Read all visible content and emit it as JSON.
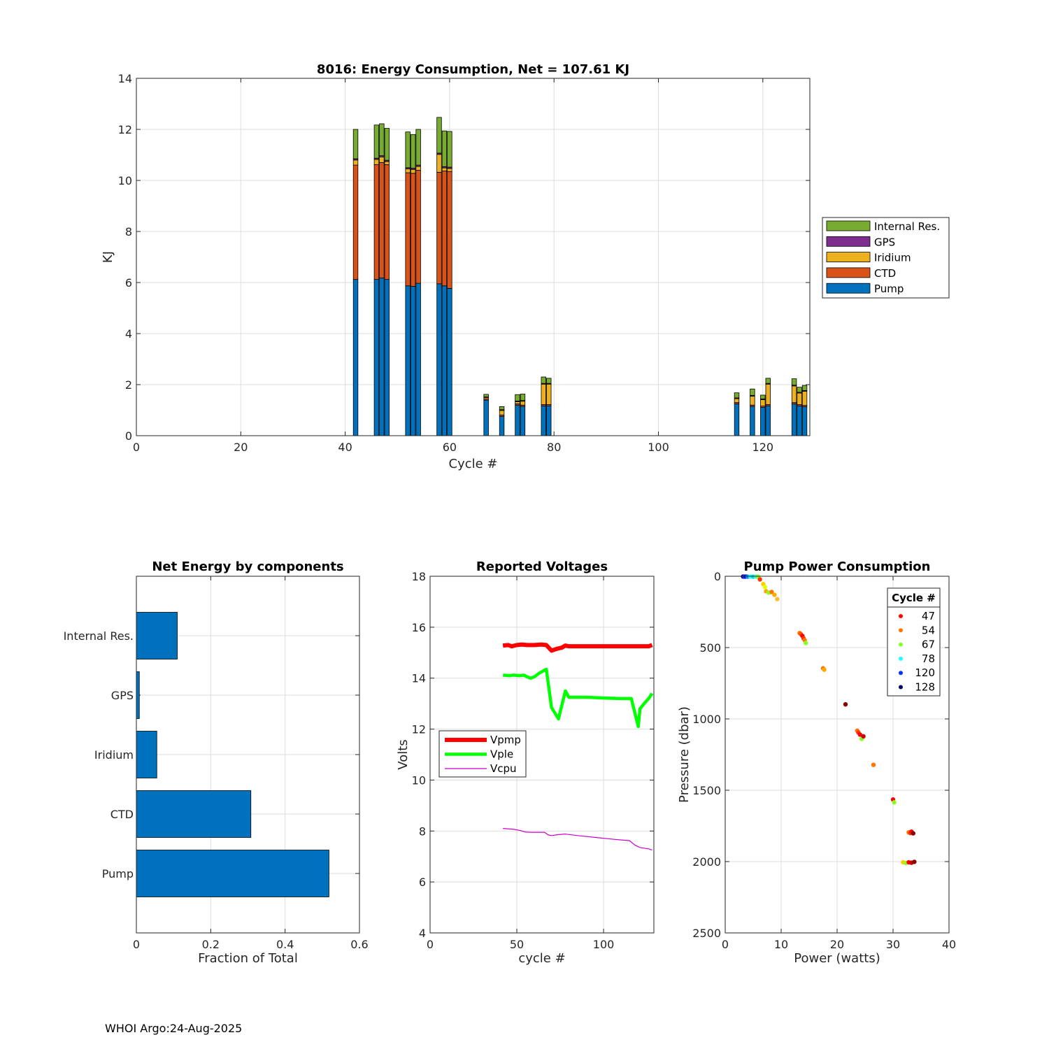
{
  "footer": "WHOI Argo:24-Aug-2025",
  "colors": {
    "pump": "#0072BD",
    "ctd": "#D95319",
    "iridium": "#EDB120",
    "gps": "#7E2F8E",
    "internal": "#77AC30",
    "vpmp": "#ff0000",
    "vple": "#00ff00",
    "vcpu": "#cc00cc"
  },
  "chart_data": [
    {
      "type": "bar",
      "stacked": true,
      "title": "8016: Energy Consumption,  Net = 107.61 KJ",
      "xlabel": "Cycle #",
      "ylabel": "KJ",
      "xlim": [
        0,
        129
      ],
      "ylim": [
        0,
        14
      ],
      "xticks": [
        "0",
        "20",
        "40",
        "60",
        "80",
        "100",
        "120"
      ],
      "yticks": [
        "0",
        "2",
        "4",
        "6",
        "8",
        "10",
        "12",
        "14"
      ],
      "legend_order": [
        "Internal Res.",
        "GPS",
        "Iridium",
        "CTD",
        "Pump"
      ],
      "legend_position": "outside-right",
      "cycles": [
        42,
        46,
        47,
        48,
        52,
        53,
        54,
        58,
        59,
        60,
        67,
        70,
        73,
        74,
        78,
        79,
        115,
        118,
        120,
        121,
        126,
        127,
        128
      ],
      "series": [
        {
          "name": "Pump",
          "color": "pump",
          "values": [
            6.12,
            6.12,
            6.18,
            6.12,
            5.87,
            5.85,
            5.97,
            5.95,
            5.87,
            5.77,
            1.39,
            0.76,
            1.2,
            1.15,
            1.17,
            1.17,
            1.25,
            1.15,
            1.11,
            1.17,
            1.25,
            1.17,
            1.14
          ]
        },
        {
          "name": "CTD",
          "color": "ctd",
          "values": [
            4.48,
            4.5,
            4.52,
            4.5,
            4.43,
            4.43,
            4.43,
            4.37,
            4.5,
            4.58,
            0.05,
            0.05,
            0.05,
            0.05,
            0.05,
            0.05,
            0.05,
            0.05,
            0.05,
            0.05,
            0.05,
            0.05,
            0.05
          ]
        },
        {
          "name": "Iridium",
          "color": "iridium",
          "values": [
            0.2,
            0.2,
            0.22,
            0.12,
            0.15,
            0.15,
            0.15,
            0.7,
            0.12,
            0.12,
            0.05,
            0.18,
            0.08,
            0.15,
            0.8,
            0.8,
            0.15,
            0.35,
            0.25,
            0.8,
            0.65,
            0.45,
            0.55
          ]
        },
        {
          "name": "GPS",
          "color": "gps",
          "values": [
            0.05,
            0.05,
            0.05,
            0.05,
            0.05,
            0.05,
            0.05,
            0.05,
            0.05,
            0.05,
            0.03,
            0.03,
            0.03,
            0.03,
            0.03,
            0.03,
            0.03,
            0.03,
            0.03,
            0.03,
            0.03,
            0.03,
            0.03
          ]
        },
        {
          "name": "Internal Res.",
          "color": "internal",
          "values": [
            1.15,
            1.3,
            1.25,
            1.25,
            1.4,
            1.32,
            1.4,
            1.4,
            1.4,
            1.4,
            0.1,
            0.12,
            0.25,
            0.25,
            0.25,
            0.2,
            0.2,
            0.25,
            0.15,
            0.2,
            0.25,
            0.2,
            0.2
          ]
        }
      ]
    },
    {
      "type": "bar",
      "orientation": "horizontal",
      "title": "Net Energy by components",
      "xlabel": "Fraction of Total",
      "ylabel": "",
      "xlim": [
        0,
        0.6
      ],
      "xticks": [
        "0",
        "0.2",
        "0.4",
        "0.6"
      ],
      "categories": [
        "Internal Res.",
        "GPS",
        "Iridium",
        "CTD",
        "Pump"
      ],
      "values": [
        0.11,
        0.008,
        0.055,
        0.308,
        0.518
      ]
    },
    {
      "type": "line",
      "title": "Reported Voltages",
      "xlabel": "cycle #",
      "ylabel": "Volts",
      "xlim": [
        0,
        129
      ],
      "ylim": [
        4,
        18
      ],
      "xticks": [
        "0",
        "50",
        "100"
      ],
      "yticks": [
        "4",
        "6",
        "8",
        "10",
        "12",
        "14",
        "16",
        "18"
      ],
      "legend_position": "middle-left",
      "series": [
        {
          "name": "Vpmp",
          "color": "vpmp",
          "x": [
            42,
            45,
            47,
            50,
            53,
            56,
            60,
            64,
            67,
            70,
            73,
            76,
            78,
            80,
            90,
            100,
            110,
            120,
            126,
            128
          ],
          "y": [
            15.28,
            15.3,
            15.25,
            15.3,
            15.32,
            15.3,
            15.3,
            15.32,
            15.3,
            15.08,
            15.15,
            15.2,
            15.28,
            15.25,
            15.25,
            15.25,
            15.25,
            15.25,
            15.25,
            15.3
          ]
        },
        {
          "name": "Vple",
          "color": "vple",
          "x": [
            42,
            46,
            48,
            52,
            54,
            56,
            58,
            60,
            63,
            67,
            70,
            74,
            78,
            80,
            90,
            100,
            110,
            116,
            120,
            121,
            124,
            126,
            128
          ],
          "y": [
            14.12,
            14.1,
            14.12,
            14.1,
            14.12,
            14.05,
            14.0,
            14.05,
            14.2,
            14.35,
            12.85,
            12.4,
            13.5,
            13.25,
            13.25,
            13.22,
            13.2,
            13.2,
            12.1,
            12.8,
            13.05,
            13.2,
            13.4
          ]
        },
        {
          "name": "Vcpu",
          "color": "vcpu",
          "x": [
            42,
            48,
            52,
            55,
            58,
            60,
            66,
            68,
            70,
            73,
            76,
            78,
            85,
            95,
            105,
            115,
            118,
            121,
            126,
            128
          ],
          "y": [
            8.1,
            8.07,
            8.02,
            7.96,
            7.95,
            7.95,
            7.95,
            7.85,
            7.82,
            7.85,
            7.87,
            7.88,
            7.82,
            7.75,
            7.68,
            7.62,
            7.45,
            7.35,
            7.3,
            7.25
          ]
        }
      ]
    },
    {
      "type": "scatter",
      "title": "Pump Power Consumption",
      "xlabel": "Power (watts)",
      "ylabel": "Pressure (dbar)",
      "xlim": [
        0,
        40
      ],
      "ylim": [
        2500,
        0
      ],
      "xticks": [
        "0",
        "10",
        "20",
        "30",
        "40"
      ],
      "yticks": [
        "0",
        "500",
        "1000",
        "1500",
        "2000",
        "2500"
      ],
      "legend_title": "Cycle #",
      "legend_position": "top-right",
      "legend": [
        {
          "label": "47",
          "color": "#ff0000"
        },
        {
          "label": "54",
          "color": "#ff7700"
        },
        {
          "label": "67",
          "color": "#88ff22"
        },
        {
          "label": "78",
          "color": "#22ffff"
        },
        {
          "label": "120",
          "color": "#0033ff"
        },
        {
          "label": "128",
          "color": "#000066"
        }
      ],
      "points": [
        {
          "x": 3.2,
          "y": 2,
          "c": "#000066"
        },
        {
          "x": 3.4,
          "y": 3,
          "c": "#0033ff"
        },
        {
          "x": 3.7,
          "y": 2,
          "c": "#0000cc"
        },
        {
          "x": 4.0,
          "y": 3,
          "c": "#0088ff"
        },
        {
          "x": 4.5,
          "y": 2,
          "c": "#22ffff"
        },
        {
          "x": 5.0,
          "y": 3,
          "c": "#00dddd"
        },
        {
          "x": 5.5,
          "y": 2,
          "c": "#44ffcc"
        },
        {
          "x": 5.9,
          "y": 3,
          "c": "#88ff22"
        },
        {
          "x": 6.2,
          "y": 22,
          "c": "#ff3300"
        },
        {
          "x": 6.8,
          "y": 55,
          "c": "#ffcc00"
        },
        {
          "x": 7.1,
          "y": 75,
          "c": "#ddff00"
        },
        {
          "x": 7.3,
          "y": 105,
          "c": "#ffaa00"
        },
        {
          "x": 7.8,
          "y": 115,
          "c": "#88ff22"
        },
        {
          "x": 8.3,
          "y": 110,
          "c": "#ff7700"
        },
        {
          "x": 8.8,
          "y": 130,
          "c": "#ffaa00"
        },
        {
          "x": 9.3,
          "y": 160,
          "c": "#ffbb33"
        },
        {
          "x": 13.3,
          "y": 398,
          "c": "#ff7700"
        },
        {
          "x": 13.5,
          "y": 405,
          "c": "#ff5500"
        },
        {
          "x": 13.8,
          "y": 418,
          "c": "#ff0000"
        },
        {
          "x": 14.0,
          "y": 435,
          "c": "#ff3300"
        },
        {
          "x": 14.2,
          "y": 448,
          "c": "#ff7700"
        },
        {
          "x": 14.4,
          "y": 468,
          "c": "#88ff22"
        },
        {
          "x": 17.5,
          "y": 645,
          "c": "#ff7700"
        },
        {
          "x": 17.7,
          "y": 655,
          "c": "#ffaa00"
        },
        {
          "x": 21.5,
          "y": 898,
          "c": "#880000"
        },
        {
          "x": 23.6,
          "y": 1082,
          "c": "#ff7700"
        },
        {
          "x": 23.8,
          "y": 1095,
          "c": "#ff3300"
        },
        {
          "x": 24.1,
          "y": 1110,
          "c": "#ff0000"
        },
        {
          "x": 24.4,
          "y": 1140,
          "c": "#88ff22"
        },
        {
          "x": 24.7,
          "y": 1122,
          "c": "#cc0000"
        },
        {
          "x": 26.5,
          "y": 1322,
          "c": "#ff7700"
        },
        {
          "x": 30.0,
          "y": 1565,
          "c": "#ff0000"
        },
        {
          "x": 30.2,
          "y": 1585,
          "c": "#88ff22"
        },
        {
          "x": 32.8,
          "y": 1795,
          "c": "#ff7700"
        },
        {
          "x": 33.1,
          "y": 1800,
          "c": "#ff3300"
        },
        {
          "x": 33.3,
          "y": 1790,
          "c": "#ff0000"
        },
        {
          "x": 33.6,
          "y": 1802,
          "c": "#880000"
        },
        {
          "x": 31.8,
          "y": 2005,
          "c": "#ffcc00"
        },
        {
          "x": 32.3,
          "y": 2010,
          "c": "#88ff22"
        },
        {
          "x": 32.8,
          "y": 2005,
          "c": "#ff0000"
        },
        {
          "x": 33.3,
          "y": 2008,
          "c": "#cc0000"
        },
        {
          "x": 33.8,
          "y": 2002,
          "c": "#880000"
        }
      ]
    }
  ]
}
